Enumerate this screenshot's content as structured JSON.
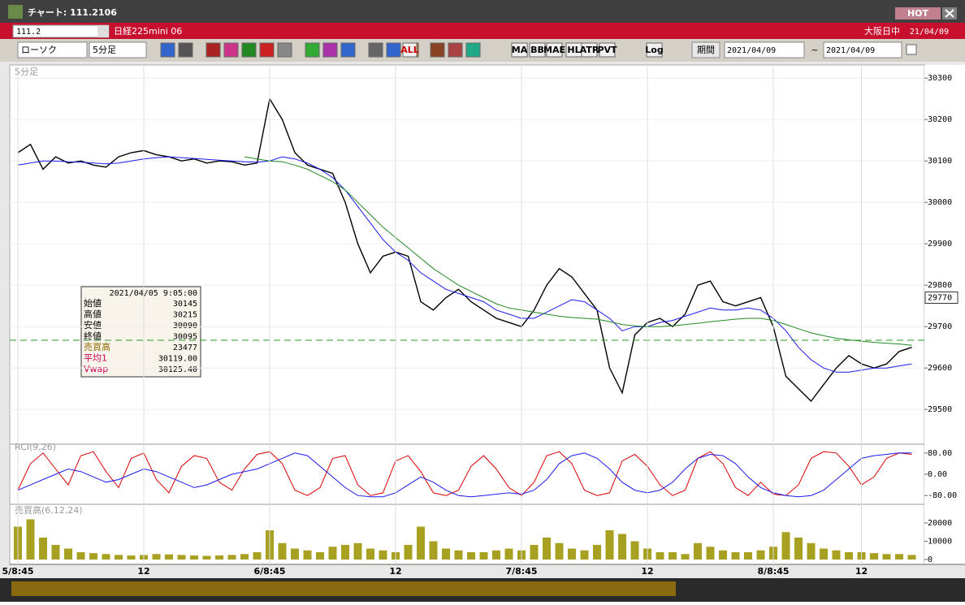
{
  "window": {
    "title": "チャート: 111.2106",
    "hot": "HOT"
  },
  "header": {
    "code": "111.2",
    "name": "日経225mini 06",
    "market": "大阪日中",
    "date": "21/04/09"
  },
  "toolbar": {
    "chart_style": "ローソク",
    "interval": "5分足",
    "buttons": [
      "ALL",
      "MA",
      "BB",
      "MAE",
      "HL",
      "ATR",
      "PVT",
      "Log"
    ],
    "period_label": "期間",
    "from": "2021/04/09",
    "tilde": "~",
    "to": "2021/04/09"
  },
  "info_box": {
    "timestamp": "2021/04/05 9:05:00",
    "rows": [
      [
        "始値",
        "30145"
      ],
      [
        "高値",
        "30215"
      ],
      [
        "安値",
        "30090"
      ],
      [
        "終値",
        "30095"
      ],
      [
        "売買高",
        "23477"
      ],
      [
        "平均1",
        "30119.00"
      ],
      [
        "Vwap",
        "30125.40"
      ]
    ]
  },
  "chart_data": [
    {
      "type": "line",
      "label": "5分足",
      "categories": [
        "5/8:45",
        null,
        null,
        null,
        null,
        null,
        null,
        null,
        null,
        null,
        "12",
        null,
        null,
        null,
        null,
        null,
        null,
        null,
        null,
        null,
        "6/8:45",
        null,
        null,
        null,
        null,
        null,
        null,
        null,
        null,
        null,
        "12",
        null,
        null,
        null,
        null,
        null,
        null,
        null,
        null,
        null,
        "7/8:45",
        null,
        null,
        null,
        null,
        null,
        null,
        null,
        null,
        null,
        "12",
        null,
        null,
        null,
        null,
        null,
        null,
        null,
        null,
        null,
        "8/8:45",
        null,
        null,
        null,
        null,
        null,
        null,
        "12",
        null,
        null,
        null,
        null
      ],
      "series": [
        {
          "color": "#000000",
          "values": [
            30120,
            30140,
            30080,
            30110,
            30095,
            30100,
            30090,
            30085,
            30110,
            30120,
            30125,
            30115,
            30110,
            30100,
            30105,
            30095,
            30100,
            30098,
            30090,
            30095,
            30250,
            30200,
            30120,
            30090,
            30080,
            30070,
            30000,
            29900,
            29830,
            29870,
            29880,
            29870,
            29760,
            29740,
            29770,
            29790,
            29760,
            29740,
            29720,
            29710,
            29700,
            29740,
            29800,
            29840,
            29820,
            29780,
            29740,
            29600,
            29540,
            29680,
            29710,
            29720,
            29700,
            29730,
            29800,
            29810,
            29760,
            29750,
            29760,
            29770,
            29700,
            29580,
            29550,
            29520,
            29560,
            29600,
            29630,
            29610,
            29600,
            29610,
            29640,
            29650
          ]
        },
        {
          "color": "#1a1aee",
          "values": [
            30090,
            30095,
            30100,
            30100,
            30098,
            30097,
            30095,
            30093,
            30095,
            30100,
            30105,
            30108,
            30110,
            30108,
            30106,
            30104,
            30102,
            30100,
            30098,
            30097,
            30100,
            30110,
            30105,
            30095,
            30080,
            30060,
            30030,
            29990,
            29950,
            29910,
            29880,
            29860,
            29830,
            29810,
            29790,
            29780,
            29770,
            29760,
            29740,
            29730,
            29720,
            29720,
            29735,
            29750,
            29765,
            29760,
            29740,
            29720,
            29690,
            29700,
            29700,
            29710,
            29715,
            29725,
            29735,
            29745,
            29740,
            29740,
            29745,
            29740,
            29720,
            29690,
            29650,
            29620,
            29600,
            29590,
            29590,
            29595,
            29600,
            29600,
            29605,
            29610
          ]
        },
        {
          "color": "#228822",
          "values": [
            null,
            null,
            null,
            null,
            null,
            null,
            null,
            null,
            null,
            null,
            null,
            null,
            null,
            null,
            null,
            null,
            null,
            null,
            30110,
            30105,
            30100,
            30098,
            30090,
            30080,
            30065,
            30050,
            30030,
            30000,
            29970,
            29940,
            29915,
            29890,
            29865,
            29840,
            29820,
            29800,
            29785,
            29770,
            29755,
            29745,
            29740,
            29735,
            29730,
            29725,
            29722,
            29720,
            29718,
            29712,
            29705,
            29702,
            29700,
            29700,
            29702,
            29705,
            29708,
            29712,
            29715,
            29718,
            29720,
            29720,
            29715,
            29705,
            29695,
            29685,
            29678,
            29672,
            29668,
            29665,
            29662,
            29660,
            29658,
            29655
          ]
        }
      ],
      "ylim": [
        29420,
        30320
      ],
      "yticks": [
        29500,
        29600,
        29700,
        29800,
        29900,
        30000,
        30100,
        30200,
        30300
      ],
      "last_label": 29770,
      "reference_line": 29667
    },
    {
      "type": "line",
      "label": "RCI(9,26)",
      "series": [
        {
          "color": "#dd0000",
          "values": [
            -60,
            40,
            80,
            20,
            -40,
            70,
            85,
            10,
            -50,
            60,
            80,
            -20,
            -70,
            30,
            70,
            60,
            -30,
            -60,
            20,
            75,
            85,
            40,
            -60,
            -80,
            -50,
            60,
            70,
            -40,
            -80,
            -70,
            50,
            70,
            10,
            -70,
            -80,
            -60,
            30,
            70,
            20,
            -50,
            -80,
            -30,
            70,
            85,
            40,
            -60,
            -80,
            -70,
            50,
            75,
            30,
            -40,
            -80,
            -60,
            60,
            85,
            40,
            -50,
            -80,
            -30,
            -75,
            -80,
            -40,
            60,
            85,
            80,
            30,
            -40,
            -10,
            60,
            80,
            75
          ]
        },
        {
          "color": "#1a1aee",
          "values": [
            -60,
            -40,
            -20,
            0,
            20,
            10,
            -10,
            -30,
            -20,
            0,
            20,
            10,
            -10,
            -30,
            -50,
            -40,
            -20,
            0,
            10,
            20,
            40,
            60,
            80,
            70,
            30,
            -10,
            -50,
            -80,
            -85,
            -85,
            -70,
            -40,
            -10,
            -30,
            -60,
            -80,
            -85,
            -80,
            -75,
            -70,
            -75,
            -60,
            -20,
            40,
            70,
            80,
            60,
            20,
            -30,
            -60,
            -70,
            -60,
            -30,
            20,
            60,
            75,
            70,
            40,
            -10,
            -50,
            -70,
            -80,
            -85,
            -80,
            -60,
            -20,
            20,
            60,
            70,
            75,
            80,
            80
          ]
        }
      ],
      "ylim": [
        -110,
        110
      ],
      "yticks": [
        {
          "value": 80,
          "label": "80.00"
        },
        {
          "value": 0,
          "label": "0.00"
        },
        {
          "value": -80,
          "label": "-80.00"
        }
      ]
    },
    {
      "type": "bar",
      "label": "売買高(6,12,24)",
      "color": "#a8a020",
      "values": [
        18000,
        22000,
        12000,
        8000,
        6000,
        4000,
        3500,
        3000,
        2500,
        2200,
        2500,
        3000,
        2800,
        2500,
        2200,
        2000,
        2200,
        2500,
        3000,
        4000,
        16000,
        9000,
        6000,
        5000,
        4000,
        7000,
        8000,
        9000,
        6000,
        5000,
        4000,
        8000,
        18000,
        10000,
        6000,
        5000,
        4000,
        4000,
        5000,
        6000,
        5000,
        8000,
        12000,
        9000,
        6000,
        5000,
        8000,
        16000,
        14000,
        10000,
        6000,
        4000,
        4000,
        3000,
        9000,
        7000,
        5000,
        4000,
        4000,
        5000,
        7000,
        15000,
        12000,
        9000,
        6000,
        5000,
        4000,
        4000,
        3500,
        3000,
        3000,
        2500
      ],
      "ylim": [
        0,
        28000
      ],
      "yticks": [
        0,
        10000,
        20000
      ]
    }
  ]
}
